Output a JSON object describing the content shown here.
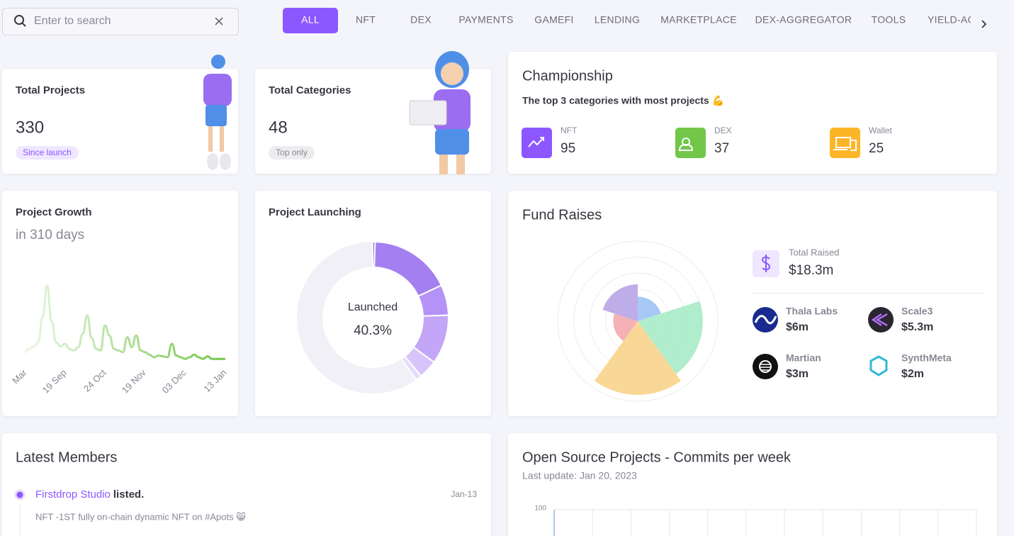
{
  "search": {
    "placeholder": "Enter to search"
  },
  "tabs": {
    "items": [
      "ALL",
      "NFT",
      "DEX",
      "PAYMENTS",
      "GAMEFI",
      "LENDING",
      "MARKETPLACE",
      "DEX-AGGREGATOR",
      "TOOLS",
      "YIELD-AGGREGATOR"
    ],
    "active_index": 0
  },
  "stats": [
    {
      "title": "Total Projects",
      "value": 330,
      "badge": "Since launch"
    },
    {
      "title": "Total Categories",
      "value": 48,
      "badge": "Top only"
    }
  ],
  "championship": {
    "title": "Championship",
    "subtitle": "The top 3 categories with most projects 💪",
    "items": [
      {
        "name": "NFT",
        "value": 95,
        "color": "#8c57ff"
      },
      {
        "name": "DEX",
        "value": 37,
        "color": "#72c64a"
      },
      {
        "name": "Wallet",
        "value": 25,
        "color": "#fdb528"
      }
    ]
  },
  "growth": {
    "title": "Project Growth",
    "subtitle": "in 310 days",
    "x_labels": [
      "Mar",
      "19 Sep",
      "24 Oct",
      "19 Nov",
      "03 Dec",
      "13 Jan"
    ],
    "values": [
      18,
      22,
      25,
      30,
      60,
      98,
      55,
      30,
      25,
      28,
      22,
      20,
      24,
      40,
      62,
      35,
      22,
      20,
      50,
      38,
      22,
      20,
      18,
      36,
      24,
      38,
      20,
      18,
      15,
      12,
      14,
      13,
      12,
      28,
      14,
      12,
      10,
      12,
      15,
      12,
      10,
      13,
      10,
      10,
      10,
      10
    ],
    "ylim": [
      0,
      100
    ]
  },
  "launching": {
    "title": "Project Launching",
    "center_label": "Launched",
    "center_value": {
      "value": 40.3,
      "label": "40.3%"
    },
    "segments": [
      0.5,
      17.5,
      6.5,
      10.5,
      4,
      1.3
    ],
    "colors": [
      "#7e57c2",
      "#a47ff0",
      "#b592f5",
      "#c3a6f7",
      "#d7c4fa",
      "#e6dbfc"
    ],
    "total": 100
  },
  "funds": {
    "title": "Fund Raises",
    "total_label": "Total Raised",
    "total": {
      "value": 18.3,
      "label": "$18.3m"
    },
    "projects": [
      {
        "name": "Thala Labs",
        "value": 6,
        "label": "$6m"
      },
      {
        "name": "Scale3",
        "value": 5.3,
        "label": "$5.3m"
      },
      {
        "name": "Martian",
        "value": 3,
        "label": "$3m"
      },
      {
        "name": "SynthMeta",
        "value": 2,
        "label": "$2m"
      }
    ],
    "polar": {
      "values": [
        2,
        5.3,
        6,
        2,
        3
      ],
      "colors": [
        "#9ec3f5",
        "#a6ebc6",
        "#f8d48c",
        "#f4a9ae",
        "#b7a4e6"
      ],
      "rlim": [
        0,
        6
      ]
    }
  },
  "members": {
    "title": "Latest Members",
    "items": [
      {
        "name": "Firstdrop Studio",
        "action": "listed.",
        "date": "Jan-13",
        "desc": "NFT -1ST fully on-chain dynamic NFT on #Apots 😸"
      }
    ]
  },
  "commits": {
    "title": "Open Source Projects - Commits per week",
    "subtitle": "Last update: Jan 20, 2023",
    "ylim": [
      0,
      100
    ],
    "yticks": [
      100
    ]
  }
}
